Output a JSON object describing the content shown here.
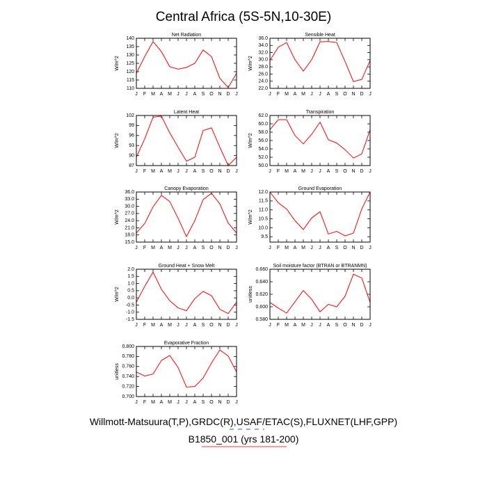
{
  "header": {
    "title": "Central Africa (5S-5N,10-30E)"
  },
  "footer": {
    "lines": [
      "Willmott-Matsuura(T,P),GRDC(R),USAF/ETAC(S),FLUXNET(LHF,GPP)",
      "B1850_001 (yrs 181-200)"
    ]
  },
  "chart_data": [
    {
      "type": "line",
      "title": "Net Radiation",
      "ylabel": "W/m^2",
      "color": "#ff0000",
      "categories": [
        "J",
        "F",
        "M",
        "A",
        "M",
        "J",
        "J",
        "A",
        "S",
        "O",
        "N",
        "D",
        "J"
      ],
      "values": [
        119,
        129,
        138,
        132,
        123,
        121.5,
        122.5,
        125,
        133,
        129,
        116,
        110.5,
        119
      ],
      "ylim": [
        110,
        140
      ],
      "yticks": [
        110,
        115,
        120,
        125,
        130,
        135,
        140
      ]
    },
    {
      "type": "line",
      "title": "Sensible Heat",
      "ylabel": "W/m^2",
      "color": "#ff0000",
      "categories": [
        "J",
        "F",
        "M",
        "A",
        "M",
        "J",
        "J",
        "A",
        "S",
        "O",
        "N",
        "D",
        "J"
      ],
      "values": [
        29.8,
        33.5,
        34.8,
        30,
        26.8,
        30,
        35,
        35.1,
        34.8,
        29.5,
        23.9,
        24.5,
        29.8
      ],
      "ylim": [
        22,
        36
      ],
      "yticks": [
        {
          "value": 22,
          "label": "22.0"
        },
        {
          "value": 24,
          "label": "24.0"
        },
        {
          "value": 26,
          "label": "26.0"
        },
        {
          "value": 28,
          "label": "28.0"
        },
        {
          "value": 30,
          "label": "30.0"
        },
        {
          "value": 32,
          "label": "32.0"
        },
        {
          "value": 34,
          "label": "34.0"
        },
        {
          "value": 36,
          "label": "36.0"
        }
      ]
    },
    {
      "type": "line",
      "title": "Latent Heat",
      "ylabel": "W/m^2",
      "color": "#ff0000",
      "categories": [
        "J",
        "F",
        "M",
        "A",
        "M",
        "J",
        "J",
        "A",
        "S",
        "O",
        "N",
        "D",
        "J"
      ],
      "values": [
        89.5,
        95,
        101.5,
        101.8,
        96.8,
        92.5,
        88.3,
        89.5,
        97.5,
        98.3,
        92.5,
        87,
        89.5
      ],
      "ylim": [
        87,
        102
      ],
      "yticks": [
        87,
        90,
        93,
        96,
        99,
        102
      ]
    },
    {
      "type": "line",
      "title": "Transpiration",
      "ylabel": "W/m^2",
      "color": "#ff0000",
      "categories": [
        "J",
        "F",
        "M",
        "A",
        "M",
        "J",
        "J",
        "A",
        "S",
        "O",
        "N",
        "D",
        "J"
      ],
      "values": [
        58.6,
        61,
        61,
        57.2,
        55.2,
        57.5,
        60.4,
        56.2,
        55.4,
        53.8,
        51.8,
        52.8,
        58.6
      ],
      "ylim": [
        50,
        62
      ],
      "yticks": [
        {
          "value": 50,
          "label": "50.0"
        },
        {
          "value": 52,
          "label": "52.0"
        },
        {
          "value": 54,
          "label": "54.0"
        },
        {
          "value": 56,
          "label": "56.0"
        },
        {
          "value": 58,
          "label": "58.0"
        },
        {
          "value": 60,
          "label": "60.0"
        },
        {
          "value": 62,
          "label": "62.0"
        }
      ]
    },
    {
      "type": "line",
      "title": "Canopy Evaporation",
      "ylabel": "W/m^2",
      "color": "#ff0000",
      "categories": [
        "J",
        "F",
        "M",
        "A",
        "M",
        "J",
        "J",
        "A",
        "S",
        "O",
        "N",
        "D",
        "J"
      ],
      "values": [
        18.8,
        22.8,
        29.8,
        34.6,
        32,
        25,
        17.3,
        24,
        32.8,
        35.5,
        31,
        23,
        18.8
      ],
      "ylim": [
        15,
        36
      ],
      "yticks": [
        {
          "value": 15,
          "label": "15.0"
        },
        {
          "value": 18,
          "label": "18.0"
        },
        {
          "value": 21,
          "label": "21.0"
        },
        {
          "value": 24,
          "label": "24.0"
        },
        {
          "value": 27,
          "label": "27.0"
        },
        {
          "value": 30,
          "label": "30.0"
        },
        {
          "value": 33,
          "label": "33.0"
        },
        {
          "value": 36,
          "label": "36.0"
        }
      ]
    },
    {
      "type": "line",
      "title": "Ground Evaporation",
      "ylabel": "W/m^2",
      "color": "#ff0000",
      "categories": [
        "J",
        "F",
        "M",
        "A",
        "M",
        "J",
        "J",
        "A",
        "S",
        "O",
        "N",
        "D",
        "J"
      ],
      "values": [
        12.0,
        11.4,
        11.05,
        10.4,
        9.9,
        10.55,
        10.9,
        9.65,
        9.8,
        9.55,
        9.7,
        11.05,
        12.0
      ],
      "ylim": [
        9.2,
        12
      ],
      "yticks": [
        9.5,
        {
          "value": 10,
          "label": "10.0"
        },
        10.5,
        {
          "value": 11,
          "label": "11.0"
        },
        11.5,
        {
          "value": 12,
          "label": "12.0"
        }
      ]
    },
    {
      "type": "line",
      "title": "Ground Heat + Snow Melt",
      "ylabel": "W/m^2",
      "color": "#ff0000",
      "categories": [
        "J",
        "F",
        "M",
        "A",
        "M",
        "J",
        "J",
        "A",
        "S",
        "O",
        "N",
        "D",
        "J"
      ],
      "values": [
        -0.3,
        0.8,
        1.8,
        0.6,
        -0.2,
        -0.7,
        -0.9,
        -0.05,
        0.45,
        0.15,
        -0.8,
        -1.1,
        -0.3
      ],
      "ylim": [
        -1.5,
        2
      ],
      "yticks": [
        -1.5,
        {
          "value": -1,
          "label": "-1.0"
        },
        -0.5,
        {
          "value": 0,
          "label": "0.0"
        },
        0.5,
        {
          "value": 1,
          "label": "1.0"
        },
        1.5,
        {
          "value": 2,
          "label": "2.0"
        }
      ]
    },
    {
      "type": "line",
      "title": "Soil moisture factor (BTRAN or BTRANMN)",
      "ylabel": "unitless",
      "color": "#ff0000",
      "categories": [
        "J",
        "F",
        "M",
        "A",
        "M",
        "J",
        "J",
        "A",
        "S",
        "O",
        "N",
        "D",
        "J"
      ],
      "values": [
        0.607,
        0.598,
        0.59,
        0.608,
        0.626,
        0.612,
        0.592,
        0.604,
        0.6,
        0.617,
        0.652,
        0.646,
        0.607
      ],
      "ylim": [
        0.58,
        0.66
      ],
      "yticks": [
        {
          "value": 0.58,
          "label": "0.580"
        },
        {
          "value": 0.6,
          "label": "0.600"
        },
        {
          "value": 0.62,
          "label": "0.620"
        },
        {
          "value": 0.64,
          "label": "0.640"
        },
        {
          "value": 0.66,
          "label": "0.660"
        }
      ]
    },
    {
      "type": "line",
      "title": "Evaporative Fraction",
      "ylabel": "unitless",
      "color": "#ff0000",
      "categories": [
        "J",
        "F",
        "M",
        "A",
        "M",
        "J",
        "J",
        "A",
        "S",
        "O",
        "N",
        "D",
        "J"
      ],
      "values": [
        0.749,
        0.741,
        0.745,
        0.772,
        0.782,
        0.758,
        0.719,
        0.72,
        0.737,
        0.767,
        0.793,
        0.781,
        0.749
      ],
      "ylim": [
        0.7,
        0.8
      ],
      "yticks": [
        {
          "value": 0.7,
          "label": "0.700"
        },
        {
          "value": 0.72,
          "label": "0.720"
        },
        {
          "value": 0.74,
          "label": "0.740"
        },
        {
          "value": 0.76,
          "label": "0.760"
        },
        {
          "value": 0.78,
          "label": "0.780"
        },
        {
          "value": 0.8,
          "label": "0.800"
        }
      ]
    }
  ]
}
